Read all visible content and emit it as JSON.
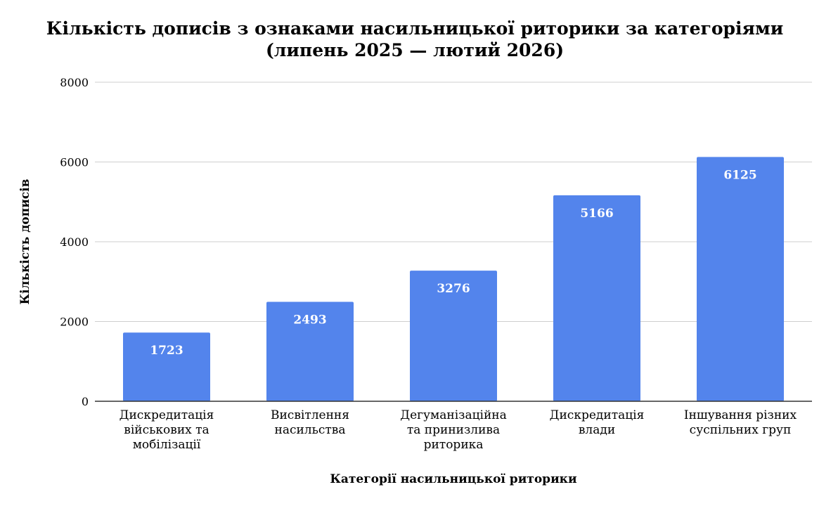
{
  "chart_data": {
    "type": "bar",
    "title": [
      "Кількість дописів з ознаками насильницької риторики за категоріями",
      "(липень 2025 — лютий 2026)"
    ],
    "xlabel": "Категорії насильницької риторики",
    "ylabel": "Кількість дописів",
    "categories": [
      [
        "Дискредитація",
        "військових та",
        "мобілізації"
      ],
      [
        "Висвітлення",
        "насильства"
      ],
      [
        "Дегуманізаційна",
        "та принизлива",
        "риторика"
      ],
      [
        "Дискредитація",
        "влади"
      ],
      [
        "Іншування різних",
        "суспільних груп"
      ]
    ],
    "values": [
      1723,
      2493,
      3276,
      5166,
      6125
    ],
    "data_labels": [
      "1723",
      "2493",
      "3276",
      "5166",
      "6125"
    ],
    "ylim": [
      0,
      8000
    ],
    "yticks": [
      "0",
      "2000",
      "4000",
      "6000",
      "8000"
    ],
    "grid": true,
    "legend": "none",
    "bar_color": "#5384EC"
  }
}
